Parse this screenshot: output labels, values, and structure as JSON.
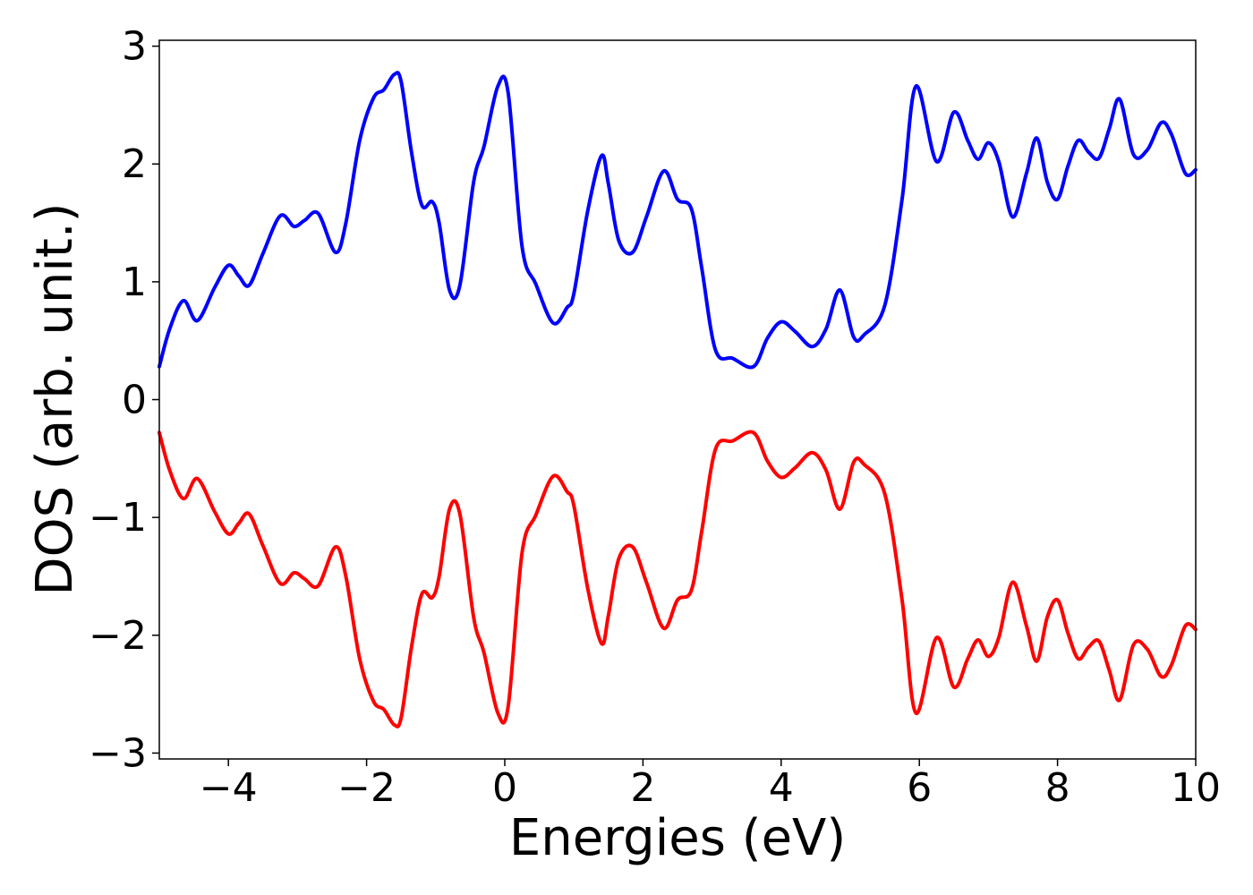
{
  "chart_data": {
    "type": "line",
    "title": "",
    "xlabel": "Energies (eV)",
    "ylabel": "DOS (arb. unit.)",
    "xlim": [
      -5,
      10
    ],
    "ylim": [
      -3.05,
      3.05
    ],
    "grid": false,
    "legend": "none",
    "x_ticks": [
      -4,
      -2,
      0,
      2,
      4,
      6,
      8,
      10
    ],
    "x_tick_labels": [
      "−4",
      "−2",
      "0",
      "2",
      "4",
      "6",
      "8",
      "10"
    ],
    "y_ticks": [
      3,
      2,
      1,
      0,
      -1,
      -2,
      -3
    ],
    "y_tick_labels": [
      "3",
      "2",
      "1",
      "0",
      "−1",
      "−2",
      "−3"
    ],
    "series": [
      {
        "color": "#0000ff",
        "x": [
          -5.0,
          -4.85,
          -4.65,
          -4.45,
          -4.2,
          -4.0,
          -3.85,
          -3.7,
          -3.5,
          -3.25,
          -3.05,
          -2.9,
          -2.7,
          -2.45,
          -2.3,
          -2.1,
          -1.9,
          -1.75,
          -1.6,
          -1.5,
          -1.35,
          -1.2,
          -1.05,
          -0.95,
          -0.8,
          -0.65,
          -0.45,
          -0.3,
          -0.1,
          0.05,
          0.25,
          0.45,
          0.7,
          0.9,
          1.0,
          1.2,
          1.4,
          1.5,
          1.65,
          1.85,
          2.05,
          2.3,
          2.5,
          2.7,
          2.85,
          3.05,
          3.3,
          3.6,
          3.8,
          4.0,
          4.2,
          4.45,
          4.65,
          4.85,
          5.05,
          5.2,
          5.5,
          5.75,
          5.95,
          6.25,
          6.5,
          6.7,
          6.85,
          7.0,
          7.15,
          7.35,
          7.55,
          7.7,
          7.85,
          8.0,
          8.15,
          8.3,
          8.45,
          8.6,
          8.75,
          8.9,
          9.1,
          9.3,
          9.5,
          9.65,
          9.85,
          10.0
        ],
        "y": [
          0.28,
          0.6,
          0.84,
          0.67,
          0.95,
          1.14,
          1.05,
          0.97,
          1.24,
          1.56,
          1.47,
          1.52,
          1.58,
          1.25,
          1.5,
          2.2,
          2.56,
          2.63,
          2.76,
          2.7,
          2.1,
          1.65,
          1.68,
          1.5,
          0.93,
          0.97,
          1.85,
          2.15,
          2.66,
          2.6,
          1.3,
          0.98,
          0.65,
          0.78,
          0.9,
          1.6,
          2.07,
          1.83,
          1.35,
          1.25,
          1.55,
          1.94,
          1.7,
          1.62,
          1.12,
          0.42,
          0.35,
          0.28,
          0.52,
          0.66,
          0.58,
          0.45,
          0.6,
          0.93,
          0.53,
          0.55,
          0.8,
          1.7,
          2.66,
          2.02,
          2.44,
          2.2,
          2.04,
          2.18,
          2.02,
          1.55,
          1.92,
          2.22,
          1.85,
          1.7,
          1.98,
          2.2,
          2.1,
          2.05,
          2.3,
          2.55,
          2.08,
          2.12,
          2.35,
          2.25,
          1.92,
          1.95
        ]
      },
      {
        "color": "#ff0000",
        "x": [
          -5.0,
          -4.85,
          -4.65,
          -4.45,
          -4.2,
          -4.0,
          -3.85,
          -3.7,
          -3.5,
          -3.25,
          -3.05,
          -2.9,
          -2.7,
          -2.45,
          -2.3,
          -2.1,
          -1.9,
          -1.75,
          -1.6,
          -1.5,
          -1.35,
          -1.2,
          -1.05,
          -0.95,
          -0.8,
          -0.65,
          -0.45,
          -0.3,
          -0.1,
          0.05,
          0.25,
          0.45,
          0.7,
          0.9,
          1.0,
          1.2,
          1.4,
          1.5,
          1.65,
          1.85,
          2.05,
          2.3,
          2.5,
          2.7,
          2.85,
          3.05,
          3.3,
          3.6,
          3.8,
          4.0,
          4.2,
          4.45,
          4.65,
          4.85,
          5.05,
          5.2,
          5.5,
          5.75,
          5.95,
          6.25,
          6.5,
          6.7,
          6.85,
          7.0,
          7.15,
          7.35,
          7.55,
          7.7,
          7.85,
          8.0,
          8.15,
          8.3,
          8.45,
          8.6,
          8.75,
          8.9,
          9.1,
          9.3,
          9.5,
          9.65,
          9.85,
          10.0
        ],
        "y": [
          -0.28,
          -0.6,
          -0.84,
          -0.67,
          -0.95,
          -1.14,
          -1.05,
          -0.97,
          -1.24,
          -1.56,
          -1.47,
          -1.52,
          -1.58,
          -1.25,
          -1.5,
          -2.2,
          -2.56,
          -2.63,
          -2.76,
          -2.7,
          -2.1,
          -1.65,
          -1.68,
          -1.5,
          -0.93,
          -0.97,
          -1.85,
          -2.15,
          -2.66,
          -2.6,
          -1.3,
          -0.98,
          -0.65,
          -0.78,
          -0.9,
          -1.6,
          -2.07,
          -1.83,
          -1.35,
          -1.25,
          -1.55,
          -1.94,
          -1.7,
          -1.62,
          -1.12,
          -0.42,
          -0.35,
          -0.28,
          -0.52,
          -0.66,
          -0.58,
          -0.45,
          -0.6,
          -0.93,
          -0.53,
          -0.55,
          -0.8,
          -1.7,
          -2.66,
          -2.02,
          -2.44,
          -2.2,
          -2.04,
          -2.18,
          -2.02,
          -1.55,
          -1.92,
          -2.22,
          -1.85,
          -1.7,
          -1.98,
          -2.2,
          -2.1,
          -2.05,
          -2.3,
          -2.55,
          -2.08,
          -2.12,
          -2.35,
          -2.25,
          -1.92,
          -1.95
        ]
      }
    ]
  }
}
